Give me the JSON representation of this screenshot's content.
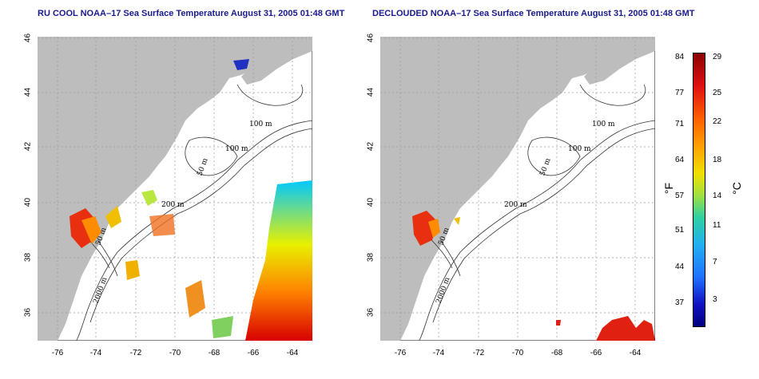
{
  "panels": [
    {
      "title": "RU COOL NOAA–17 Sea Surface Temperature August 31, 2005 01:48 GMT"
    },
    {
      "title": "DECLOUDED NOAA–17 Sea Surface Temperature August 31, 2005 01:48 GMT"
    }
  ],
  "axes": {
    "x_ticks": [
      "-76",
      "-74",
      "-72",
      "-70",
      "-68",
      "-66",
      "-64"
    ],
    "y_ticks": [
      "46",
      "44",
      "42",
      "40",
      "38",
      "36"
    ]
  },
  "contours": {
    "left": [
      "100 m",
      "100 m",
      "50 m",
      "200 m",
      "50 m",
      "2000 m"
    ],
    "right": [
      "100 m",
      "100 m",
      "50 m",
      "200 m",
      "50 m",
      "2000 m"
    ]
  },
  "colorbar": {
    "fahrenheit": [
      "84",
      "77",
      "71",
      "64",
      "57",
      "51",
      "44",
      "37"
    ],
    "celsius": [
      "29",
      "25",
      "22",
      "18",
      "14",
      "11",
      "7",
      "3"
    ],
    "unit_f": "°F",
    "unit_c": "°C"
  },
  "colors": {
    "land": "#bdbdbd",
    "title": "#1a1a8c",
    "grid": "#9a9a9a"
  }
}
